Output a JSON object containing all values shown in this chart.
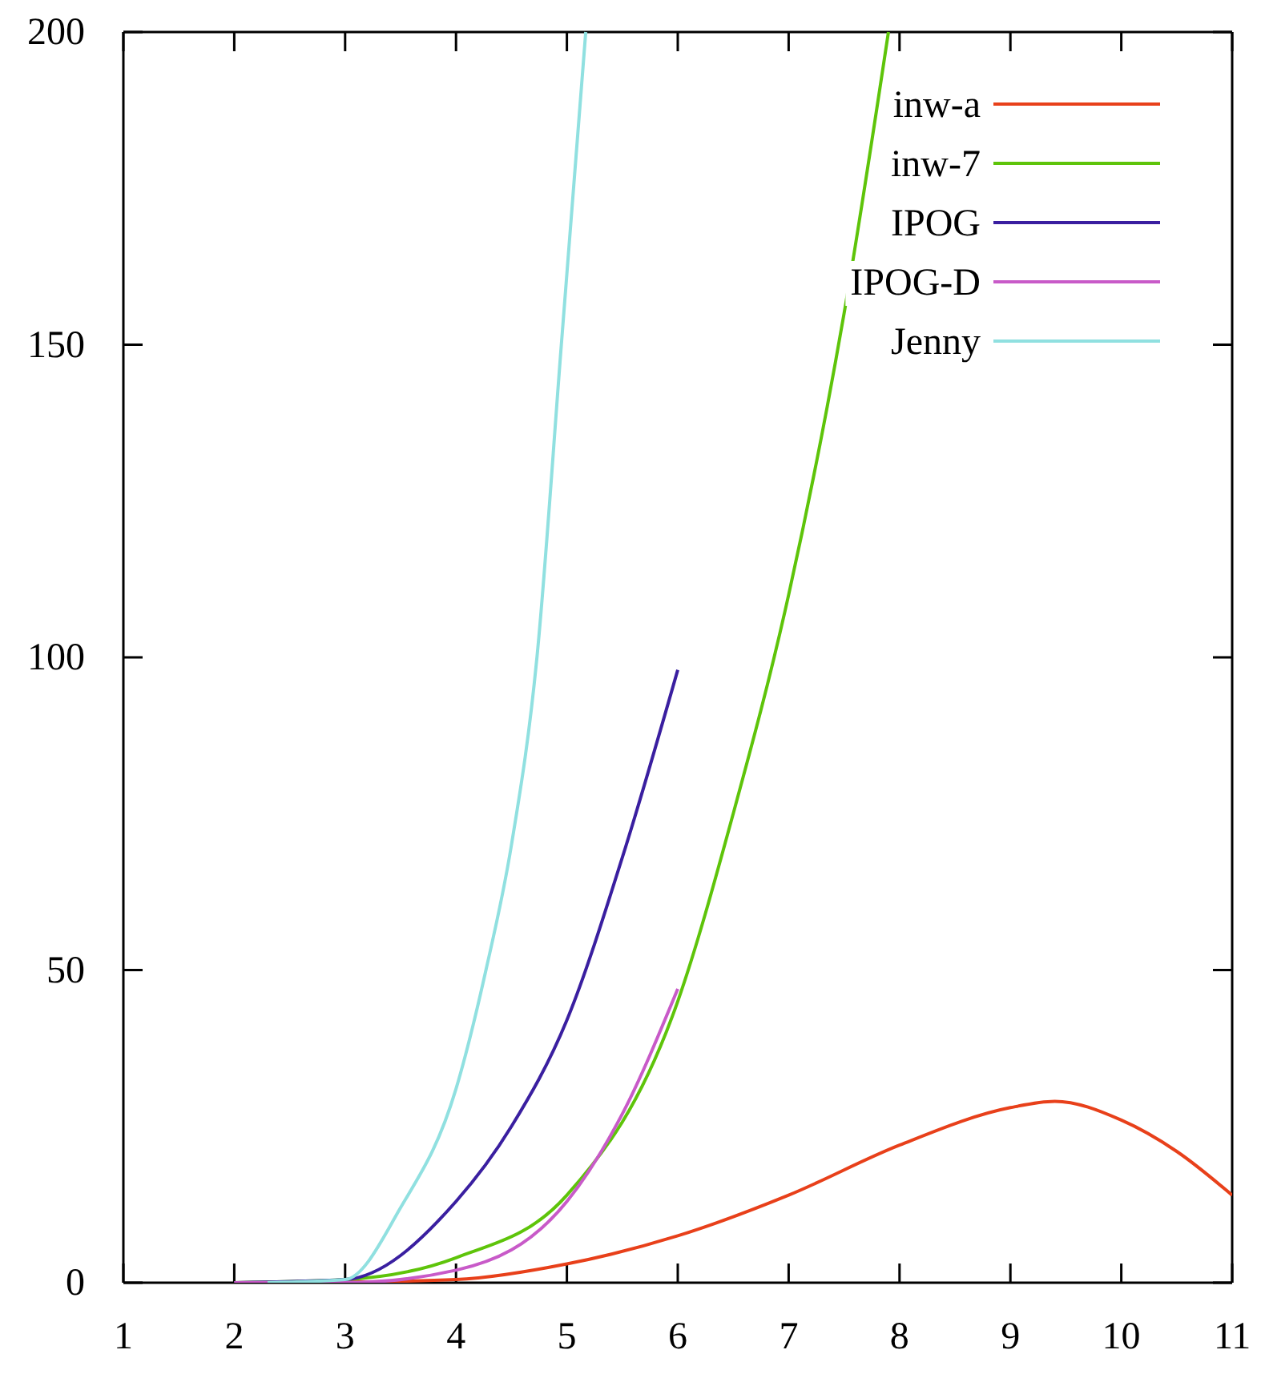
{
  "chart_data": {
    "type": "line",
    "xlim": [
      1,
      11
    ],
    "ylim": [
      0,
      200
    ],
    "xticks": [
      1,
      2,
      3,
      4,
      5,
      6,
      7,
      8,
      9,
      10,
      11
    ],
    "yticks": [
      0,
      50,
      100,
      150,
      200
    ],
    "grid": false,
    "legend": "top right",
    "marker": "none",
    "line_style": "solid",
    "series": [
      {
        "name": "inw-a",
        "color": "#e8401a",
        "x": [
          2,
          3,
          4,
          5,
          6,
          7,
          8,
          9,
          9.4,
          10,
          10.5,
          11
        ],
        "values": [
          0,
          0.1,
          0.5,
          3,
          7.5,
          14,
          22,
          28,
          29,
          26,
          21,
          14
        ]
      },
      {
        "name": "inw-7",
        "color": "#5ec40a",
        "x": [
          2,
          3,
          4,
          5,
          6,
          6.5,
          7,
          7.5,
          7.9
        ],
        "values": [
          0,
          0.5,
          4,
          14,
          45,
          75,
          110,
          155,
          200
        ]
      },
      {
        "name": "IPOG",
        "color": "#3a1fa0",
        "x": [
          2,
          3,
          4,
          4.5,
          5,
          5.5,
          6
        ],
        "values": [
          0,
          0.5,
          13,
          25,
          42,
          68,
          98
        ]
      },
      {
        "name": "IPOG-D",
        "color": "#c85ac8",
        "x": [
          2,
          3,
          4,
          5,
          5.5,
          6
        ],
        "values": [
          0,
          0,
          2,
          13,
          27,
          47
        ]
      },
      {
        "name": "Jenny",
        "color": "#90e0e0",
        "x": [
          2.3,
          3,
          3.5,
          4,
          4.27,
          4.5,
          4.73,
          4.95,
          5.17
        ],
        "values": [
          0,
          0.5,
          12,
          31,
          50,
          70,
          100,
          150,
          200
        ]
      }
    ]
  }
}
